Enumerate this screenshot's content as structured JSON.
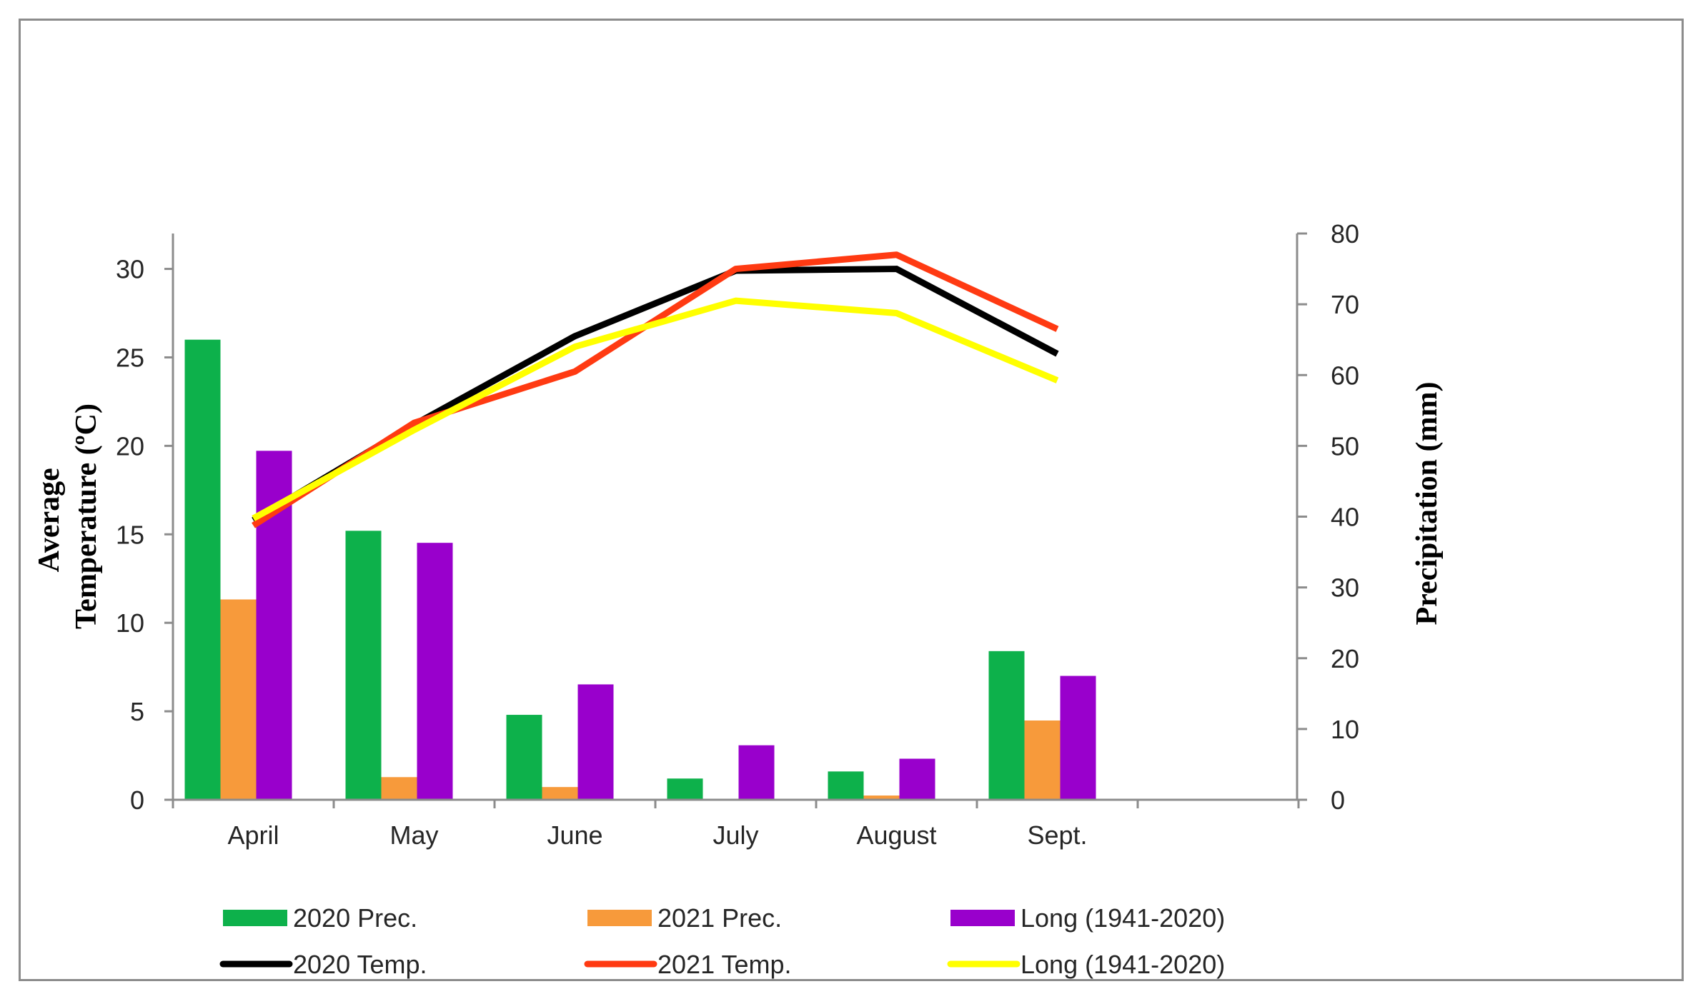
{
  "chart_data": {
    "type": "bar",
    "categories": [
      "April",
      "May",
      "June",
      "July",
      "August",
      "Sept."
    ],
    "left_axis": {
      "title_lines": [
        "Average",
        "Temperature (ºC)"
      ],
      "ylim": [
        0,
        32
      ],
      "ticks": [
        0,
        5,
        10,
        15,
        20,
        25,
        30
      ]
    },
    "right_axis": {
      "title": "Precipitation (mm)",
      "ylim": [
        0,
        80
      ],
      "ticks": [
        0,
        10,
        20,
        30,
        40,
        50,
        60,
        70,
        80
      ]
    },
    "bar_series": [
      {
        "name": "2020 Prec.",
        "color": "#0db14b",
        "values": [
          65,
          38,
          12,
          3,
          4,
          21
        ]
      },
      {
        "name": "2021 Prec.",
        "color": "#f79a3b",
        "values": [
          28.3,
          3.2,
          1.8,
          0,
          0.6,
          11.2
        ]
      },
      {
        "name": "Long (1941-2020)",
        "color": "#9900cc",
        "values": [
          49.3,
          36.3,
          16.3,
          7.7,
          5.8,
          17.5
        ]
      }
    ],
    "line_series": [
      {
        "name": "2020 Temp.",
        "color": "#000000",
        "values": [
          15.8,
          21.2,
          26.2,
          29.9,
          30.0,
          25.2
        ]
      },
      {
        "name": "2021 Temp.",
        "color": "#ff3a12",
        "values": [
          15.5,
          21.3,
          24.2,
          30.0,
          30.8,
          26.6
        ]
      },
      {
        "name": "Long (1941-2020)",
        "color": "#ffff00",
        "values": [
          15.9,
          20.9,
          25.6,
          28.2,
          27.5,
          23.7
        ]
      }
    ],
    "legend_placement": "bottom",
    "grid": false
  }
}
